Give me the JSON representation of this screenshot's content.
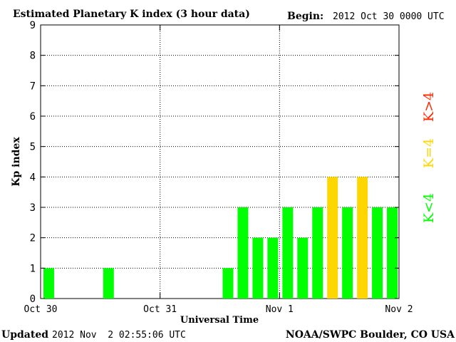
{
  "header": {
    "title": "Estimated Planetary K index (3 hour data)",
    "begin_label": "Begin:",
    "begin_value": "2012 Oct 30 0000 UTC"
  },
  "footer": {
    "updated_label": "Updated",
    "updated_value": "2012 Nov  2 02:55:06 UTC",
    "source": "NOAA/SWPC Boulder, CO USA"
  },
  "colors": {
    "below_4": "#00ff00",
    "equal_4": "#ffd700",
    "above_4": "#ff2a00",
    "grid": "#000000"
  },
  "legend": {
    "low": "K<4",
    "mid": "K=4",
    "high": "K>4"
  },
  "chart_data": {
    "type": "bar",
    "title": "Estimated Planetary K index (3 hour data)",
    "xlabel": "Universal Time",
    "ylabel": "Kp index",
    "ylim": [
      0,
      9
    ],
    "yticks": [
      "0",
      "1",
      "2",
      "3",
      "4",
      "5",
      "6",
      "7",
      "8",
      "9"
    ],
    "xticks": [
      "Oct 30",
      "Oct 31",
      "Nov 1",
      "Nov 2"
    ],
    "grid": true,
    "interval_hours": 3,
    "series": [
      {
        "values": [
          1,
          0,
          0,
          0,
          1,
          0,
          0,
          0,
          0,
          0,
          0,
          0,
          1,
          3,
          2,
          2,
          3,
          2,
          3,
          4,
          3,
          4,
          3,
          3
        ]
      }
    ]
  }
}
